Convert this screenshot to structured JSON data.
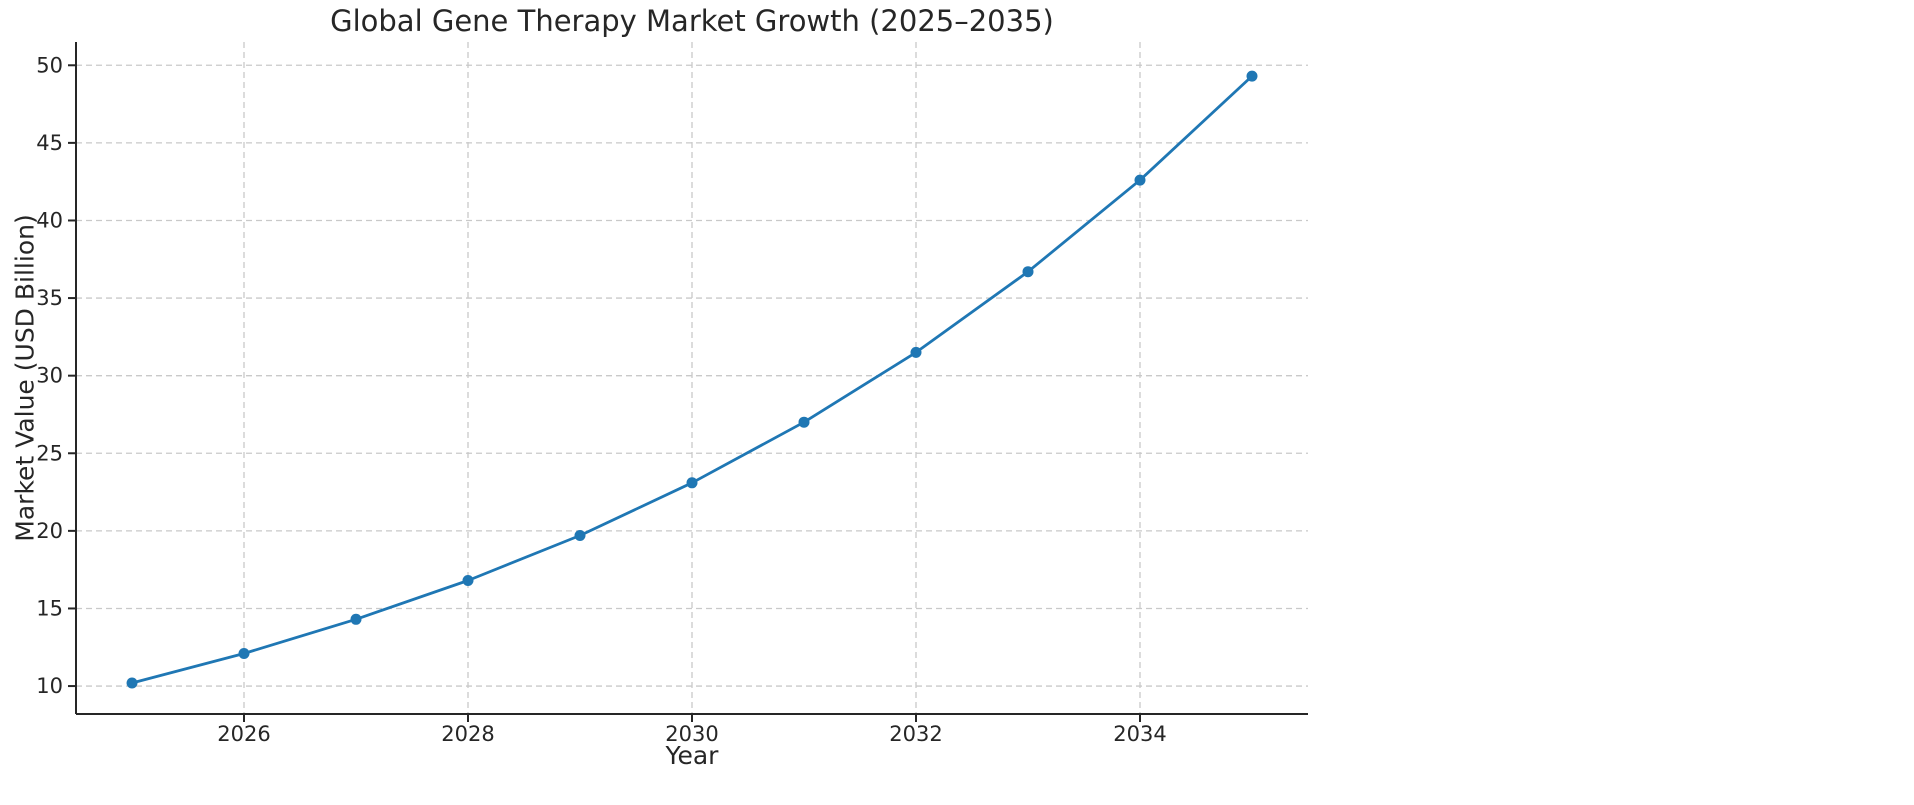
{
  "chart_data": {
    "type": "line",
    "title": "Global Gene Therapy Market Growth (2025–2035)",
    "xlabel": "Year",
    "ylabel": "Market Value (USD Billion)",
    "x": [
      2025,
      2026,
      2027,
      2028,
      2029,
      2030,
      2031,
      2032,
      2033,
      2034,
      2035
    ],
    "series": [
      {
        "name": "Market Value",
        "values": [
          10.2,
          12.1,
          14.3,
          16.8,
          19.7,
          23.1,
          27.0,
          31.5,
          36.7,
          42.6,
          49.3
        ]
      }
    ],
    "xticks": [
      2026,
      2028,
      2030,
      2032,
      2034
    ],
    "yticks": [
      10,
      15,
      20,
      25,
      30,
      35,
      40,
      45,
      50
    ],
    "xlim": [
      2024.5,
      2035.5
    ],
    "ylim": [
      8.2,
      51.5
    ],
    "grid": true,
    "grid_style": "dashed",
    "legend_position": "none",
    "marker": "circle",
    "colors": {
      "line": "#1f77b4",
      "marker": "#1f77b4",
      "grid": "#c9c9c9",
      "spine": "#262626",
      "text": "#262626",
      "background": "#ffffff"
    }
  }
}
